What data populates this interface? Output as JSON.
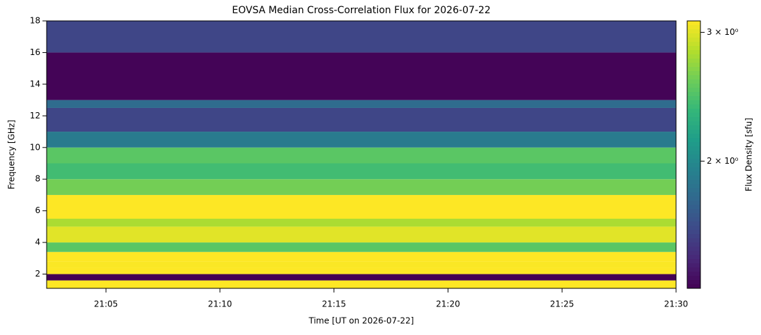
{
  "chart_data": {
    "type": "heatmap",
    "title": "EOVSA Median Cross-Correlation Flux for 2026-07-22",
    "x_label": "Time [UT on 2026-07-22]",
    "y_label": "Frequency [GHz]",
    "colorbar_label": "Flux Density [sfu]",
    "xlim": [
      "21:02:24",
      "21:30:00"
    ],
    "xticks": [
      "21:05",
      "21:10",
      "21:15",
      "21:20",
      "21:25",
      "21:30"
    ],
    "ylim": [
      1.1,
      18
    ],
    "yticks": [
      2,
      4,
      6,
      8,
      10,
      12,
      14,
      16,
      18
    ],
    "y_bins": [
      1.1,
      1.6,
      2.0,
      2.4,
      2.8,
      3.4,
      4.0,
      5.0,
      5.5,
      7.0,
      8.0,
      9.0,
      10.0,
      11.0,
      12.5,
      13.0,
      16.0,
      18.0
    ],
    "values": [
      3.2,
      1.3,
      3.2,
      3.1,
      3.2,
      2.5,
      3.0,
      2.8,
      3.2,
      2.6,
      2.4,
      2.5,
      1.9,
      1.6,
      1.8,
      1.35,
      1.6
    ],
    "color_scale": "log",
    "colormap": "viridis",
    "clim": [
      1.34,
      3.11
    ],
    "cticks": [
      {
        "value": 2,
        "label": "2 × 10⁰"
      },
      {
        "value": 3,
        "label": "3 × 10⁰"
      }
    ]
  }
}
